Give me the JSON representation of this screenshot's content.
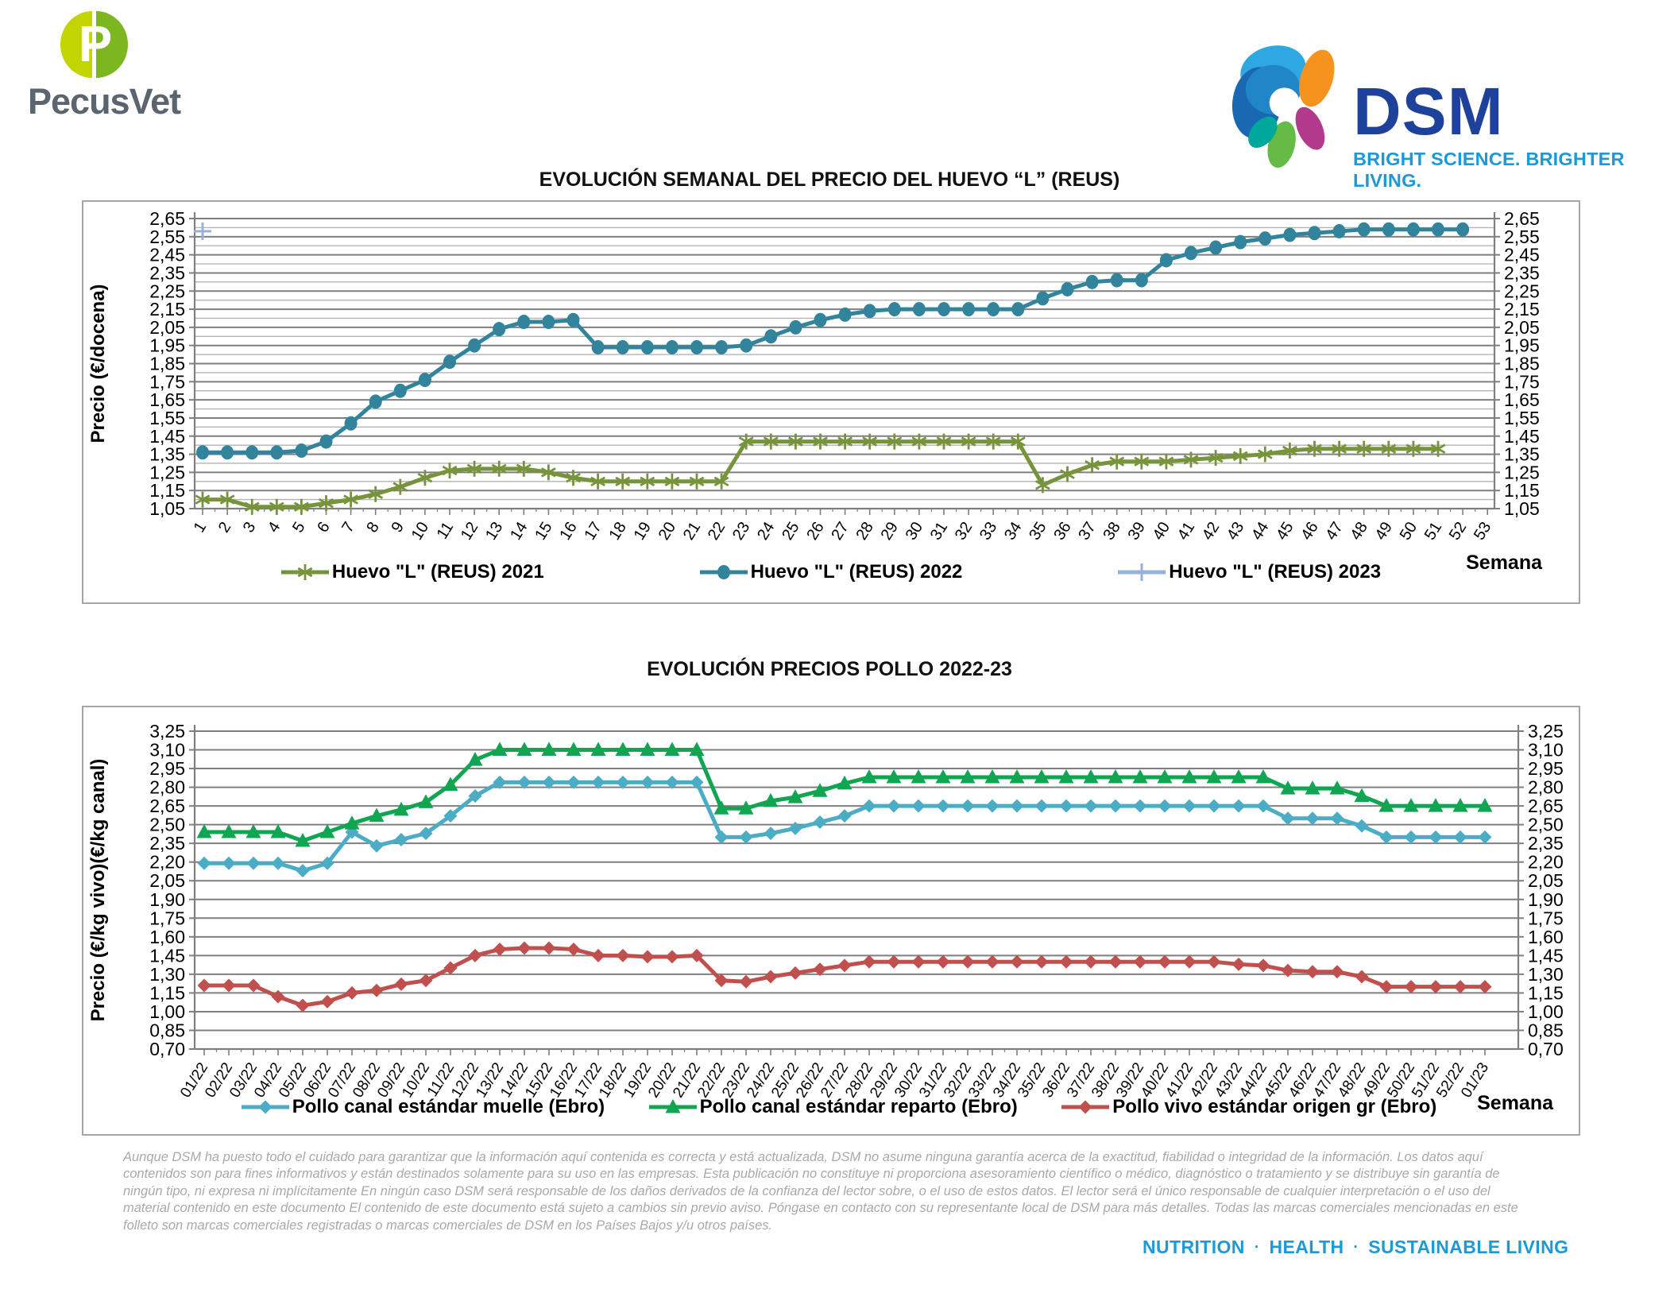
{
  "header": {
    "pecusvet_name": "PecusVet",
    "pecusvet_initial": "P",
    "pecusvet_colors": {
      "left_leaf": "#C3D500",
      "right_leaf": "#7CB722",
      "wordmark": "#5A6570"
    },
    "dsm_name": "DSM",
    "dsm_tagline": "BRIGHT SCIENCE. BRIGHTER LIVING.",
    "dsm_colors": {
      "wordmark": "#1E419B",
      "tagline": "#1C9AD6"
    }
  },
  "chart_data": [
    {
      "type": "line",
      "title": "EVOLUCIÓN SEMANAL DEL PRECIO DEL HUEVO “L” (REUS)",
      "ylabel": "Precio (€/docena)",
      "xlabel": "Semana",
      "ylim": [
        1.05,
        2.65
      ],
      "ytick_step": 0.1,
      "minor_step": 0.05,
      "grid": true,
      "legend_position": "bottom",
      "ytick_labels": [
        "2,65",
        "2,55",
        "2,45",
        "2,35",
        "2,25",
        "2,15",
        "2,05",
        "1,95",
        "1,85",
        "1,75",
        "1,65",
        "1,55",
        "1,45",
        "1,35",
        "1,25",
        "1,15",
        "1,05"
      ],
      "x_categories": [
        "1",
        "2",
        "3",
        "4",
        "5",
        "6",
        "7",
        "8",
        "9",
        "10",
        "11",
        "12",
        "13",
        "14",
        "15",
        "16",
        "17",
        "18",
        "19",
        "20",
        "21",
        "22",
        "23",
        "24",
        "25",
        "26",
        "27",
        "28",
        "29",
        "30",
        "31",
        "32",
        "33",
        "34",
        "35",
        "36",
        "37",
        "38",
        "39",
        "40",
        "41",
        "42",
        "43",
        "44",
        "45",
        "46",
        "47",
        "48",
        "49",
        "50",
        "51",
        "52",
        "53"
      ],
      "series": [
        {
          "name": "Huevo \"L\" (REUS) 2021",
          "color": "#77933C",
          "marker": "asterisk",
          "values": [
            1.1,
            1.1,
            1.06,
            1.06,
            1.06,
            1.08,
            1.1,
            1.13,
            1.17,
            1.22,
            1.26,
            1.27,
            1.27,
            1.27,
            1.25,
            1.22,
            1.2,
            1.2,
            1.2,
            1.2,
            1.2,
            1.2,
            1.42,
            1.42,
            1.42,
            1.42,
            1.42,
            1.42,
            1.42,
            1.42,
            1.42,
            1.42,
            1.42,
            1.42,
            1.18,
            1.24,
            1.29,
            1.31,
            1.31,
            1.31,
            1.32,
            1.33,
            1.34,
            1.35,
            1.37,
            1.38,
            1.38,
            1.38,
            1.38,
            1.38,
            1.38
          ]
        },
        {
          "name": "Huevo \"L\" (REUS) 2022",
          "color": "#31849B",
          "marker": "circle",
          "values": [
            1.36,
            1.36,
            1.36,
            1.36,
            1.37,
            1.42,
            1.52,
            1.64,
            1.7,
            1.76,
            1.86,
            1.95,
            2.04,
            2.08,
            2.08,
            2.09,
            1.94,
            1.94,
            1.94,
            1.94,
            1.94,
            1.94,
            1.95,
            2.0,
            2.05,
            2.09,
            2.12,
            2.14,
            2.15,
            2.15,
            2.15,
            2.15,
            2.15,
            2.15,
            2.21,
            2.26,
            2.3,
            2.31,
            2.31,
            2.42,
            2.46,
            2.49,
            2.52,
            2.54,
            2.56,
            2.57,
            2.58,
            2.59,
            2.59,
            2.59,
            2.59,
            2.59
          ]
        },
        {
          "name": "Huevo \"L\" (REUS) 2023",
          "color": "#95B3D7",
          "marker": "plus",
          "values": [
            2.58
          ]
        }
      ]
    },
    {
      "type": "line",
      "title": "EVOLUCIÓN PRECIOS POLLO 2022-23",
      "ylabel": "Precio (€/kg vivo)(€/kg canal)",
      "xlabel": "Semana",
      "ylim": [
        0.7,
        3.25
      ],
      "ytick_step": 0.15,
      "grid": true,
      "legend_position": "bottom",
      "ytick_labels": [
        "3,25",
        "3,10",
        "2,95",
        "2,80",
        "2,65",
        "2,50",
        "2,35",
        "2,20",
        "2,05",
        "1,90",
        "1,75",
        "1,60",
        "1,45",
        "1,30",
        "1,15",
        "1,00",
        "0,85",
        "0,70"
      ],
      "x_categories": [
        "01/22",
        "02/22",
        "03/22",
        "04/22",
        "05/22",
        "06/22",
        "07/22",
        "08/22",
        "09/22",
        "10/22",
        "11/22",
        "12/22",
        "13/22",
        "14/22",
        "15/22",
        "16/22",
        "17/22",
        "18/22",
        "19/22",
        "20/22",
        "21/22",
        "22/22",
        "23/22",
        "24/22",
        "25/22",
        "26/22",
        "27/22",
        "28/22",
        "29/22",
        "30/22",
        "31/22",
        "32/22",
        "33/22",
        "34/22",
        "35/22",
        "36/22",
        "37/22",
        "38/22",
        "39/22",
        "40/22",
        "41/22",
        "42/22",
        "43/22",
        "44/22",
        "45/22",
        "46/22",
        "47/22",
        "48/22",
        "49/22",
        "50/22",
        "51/22",
        "52/22",
        "01/23"
      ],
      "series": [
        {
          "name": "Pollo canal estándar muelle (Ebro)",
          "color": "#4BACC6",
          "marker": "diamond",
          "values": [
            2.19,
            2.19,
            2.19,
            2.19,
            2.13,
            2.19,
            2.44,
            2.33,
            2.38,
            2.43,
            2.57,
            2.73,
            2.84,
            2.84,
            2.84,
            2.84,
            2.84,
            2.84,
            2.84,
            2.84,
            2.84,
            2.4,
            2.4,
            2.43,
            2.47,
            2.52,
            2.57,
            2.65,
            2.65,
            2.65,
            2.65,
            2.65,
            2.65,
            2.65,
            2.65,
            2.65,
            2.65,
            2.65,
            2.65,
            2.65,
            2.65,
            2.65,
            2.65,
            2.65,
            2.55,
            2.55,
            2.55,
            2.49,
            2.4,
            2.4,
            2.4,
            2.4,
            2.4
          ]
        },
        {
          "name": "Pollo canal estándar reparto (Ebro)",
          "color": "#10A651",
          "marker": "triangle",
          "values": [
            2.44,
            2.44,
            2.44,
            2.44,
            2.37,
            2.44,
            2.51,
            2.57,
            2.62,
            2.68,
            2.82,
            3.02,
            3.1,
            3.1,
            3.1,
            3.1,
            3.1,
            3.1,
            3.1,
            3.1,
            3.1,
            2.63,
            2.63,
            2.69,
            2.72,
            2.77,
            2.83,
            2.88,
            2.88,
            2.88,
            2.88,
            2.88,
            2.88,
            2.88,
            2.88,
            2.88,
            2.88,
            2.88,
            2.88,
            2.88,
            2.88,
            2.88,
            2.88,
            2.88,
            2.79,
            2.79,
            2.79,
            2.73,
            2.65,
            2.65,
            2.65,
            2.65,
            2.65
          ]
        },
        {
          "name": "Pollo vivo estándar origen gr (Ebro)",
          "color": "#C0504D",
          "marker": "diamond",
          "values": [
            1.21,
            1.21,
            1.21,
            1.12,
            1.05,
            1.08,
            1.15,
            1.17,
            1.22,
            1.25,
            1.35,
            1.45,
            1.5,
            1.51,
            1.51,
            1.5,
            1.45,
            1.45,
            1.44,
            1.44,
            1.45,
            1.25,
            1.24,
            1.28,
            1.31,
            1.34,
            1.37,
            1.4,
            1.4,
            1.4,
            1.4,
            1.4,
            1.4,
            1.4,
            1.4,
            1.4,
            1.4,
            1.4,
            1.4,
            1.4,
            1.4,
            1.4,
            1.38,
            1.37,
            1.33,
            1.32,
            1.32,
            1.28,
            1.2,
            1.2,
            1.2,
            1.2,
            1.2
          ]
        }
      ]
    }
  ],
  "disclaimer": "Aunque DSM ha puesto todo el cuidado para garantizar que la información aquí contenida es correcta y está actualizada, DSM no asume ninguna garantía acerca de la exactitud, fiabilidad o integridad de la información. Los datos aquí contenidos son para fines informativos y están destinados solamente para su uso en las empresas. Esta publicación no constituye ni proporciona asesoramiento científico o médico, diagnóstico o tratamiento y se distribuye sin garantía de ningún tipo, ni expresa ni implícitamente En ningún caso DSM será responsable de los daños derivados de la confianza del lector sobre, o el uso de estos datos. El lector será el único responsable de cualquier interpretación o el uso del material contenido en este documento El contenido de este documento está sujeto a cambios sin previo aviso. Póngase en contacto con su representante local de DSM para más detalles. Todas las marcas comerciales mencionadas en este folleto son marcas comerciales registradas o marcas comerciales de DSM en los Países Bajos y/u otros países.",
  "footer": {
    "items": [
      "NUTRITION",
      "HEALTH",
      "SUSTAINABLE LIVING"
    ],
    "separator": "·",
    "color": "#1C9AD6"
  }
}
